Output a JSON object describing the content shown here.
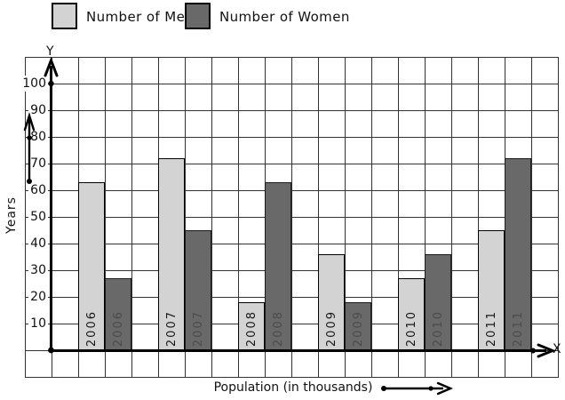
{
  "legend": {
    "items": [
      {
        "label": "Number of Men",
        "color": "#d3d3d3"
      },
      {
        "label": "Number of Women",
        "color": "#696969"
      }
    ]
  },
  "axes": {
    "y_letter": "Y",
    "x_letter": "X",
    "y_title": "Years",
    "x_title": "Population (in thousands)",
    "y_ticks": [
      100,
      90,
      80,
      70,
      60,
      50,
      40,
      30,
      20,
      10
    ]
  },
  "chart_data": {
    "type": "bar",
    "title": "",
    "categories": [
      "2006",
      "2007",
      "2008",
      "2009",
      "2010",
      "2011"
    ],
    "series": [
      {
        "name": "Number of Men",
        "color": "#d3d3d3",
        "values": [
          63,
          72,
          18,
          36,
          27,
          45
        ]
      },
      {
        "name": "Number of Women",
        "color": "#696969",
        "values": [
          27,
          45,
          63,
          18,
          36,
          72
        ]
      }
    ],
    "xlabel": "Population (in thousands)",
    "ylabel": "Years",
    "ylim": [
      0,
      110
    ],
    "ytick_step": 10,
    "grid": true,
    "legend_position": "top"
  }
}
